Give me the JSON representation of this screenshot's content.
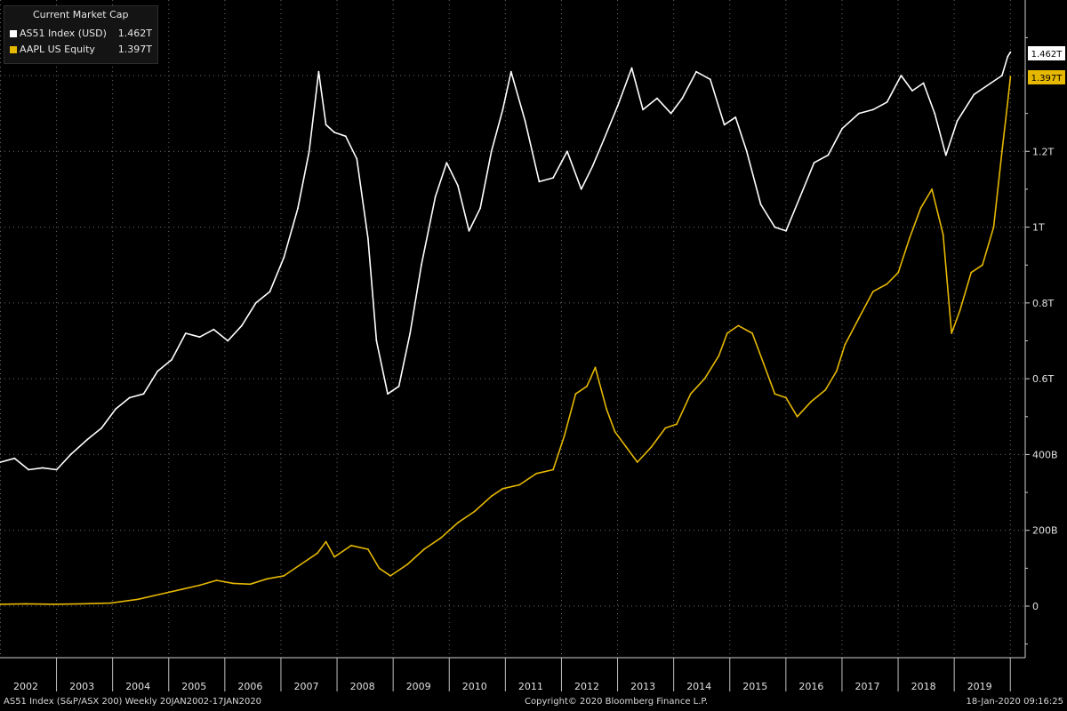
{
  "legend": {
    "title": "Current Market Cap",
    "items": [
      {
        "name": "AS51 Index (USD)",
        "value": "1.462T",
        "color": "#ffffff"
      },
      {
        "name": "AAPL US Equity",
        "value": "1.397T",
        "color": "#e6b800"
      }
    ]
  },
  "footer": {
    "left": "AS51 Index (S&P/ASX 200)  Weekly 20JAN2002-17JAN2020",
    "center": "Copyright© 2020 Bloomberg Finance L.P.",
    "right": "18-Jan-2020 09:16:25"
  },
  "colors": {
    "background": "#000000",
    "asx": "#ffffff",
    "aapl": "#e6b800",
    "grid": "#6e6e6e"
  },
  "chart_data": {
    "type": "line",
    "y_unit": "USD billions",
    "ylim": [
      -120,
      1600
    ],
    "y_ticks": [
      {
        "value": 0,
        "label": "0"
      },
      {
        "value": 200,
        "label": "200B"
      },
      {
        "value": 400,
        "label": "400B"
      },
      {
        "value": 600,
        "label": "0.6T"
      },
      {
        "value": 800,
        "label": "0.8T"
      },
      {
        "value": 1000,
        "label": "1T"
      },
      {
        "value": 1200,
        "label": "1.2T"
      }
    ],
    "x_ticks": [
      "2002",
      "2003",
      "2004",
      "2005",
      "2006",
      "2007",
      "2008",
      "2009",
      "2010",
      "2011",
      "2012",
      "2013",
      "2014",
      "2015",
      "2016",
      "2017",
      "2018",
      "2019"
    ],
    "xlim": [
      2002.05,
      2020.05
    ],
    "last_value_labels": [
      {
        "series": "AS51 Index (USD)",
        "label": "1.462T"
      },
      {
        "series": "AAPL US Equity",
        "label": "1.397T"
      }
    ],
    "series": [
      {
        "name": "AS51 Index (USD)",
        "color": "#ffffff",
        "points": [
          [
            2002.05,
            380
          ],
          [
            2002.3,
            390
          ],
          [
            2002.55,
            360
          ],
          [
            2002.8,
            365
          ],
          [
            2003.05,
            360
          ],
          [
            2003.3,
            400
          ],
          [
            2003.6,
            440
          ],
          [
            2003.85,
            470
          ],
          [
            2004.1,
            520
          ],
          [
            2004.35,
            550
          ],
          [
            2004.6,
            560
          ],
          [
            2004.85,
            620
          ],
          [
            2005.1,
            650
          ],
          [
            2005.35,
            720
          ],
          [
            2005.6,
            710
          ],
          [
            2005.85,
            730
          ],
          [
            2006.1,
            700
          ],
          [
            2006.35,
            740
          ],
          [
            2006.6,
            800
          ],
          [
            2006.85,
            830
          ],
          [
            2007.1,
            920
          ],
          [
            2007.35,
            1050
          ],
          [
            2007.55,
            1200
          ],
          [
            2007.72,
            1410
          ],
          [
            2007.85,
            1270
          ],
          [
            2008.0,
            1250
          ],
          [
            2008.2,
            1240
          ],
          [
            2008.4,
            1180
          ],
          [
            2008.6,
            970
          ],
          [
            2008.75,
            700
          ],
          [
            2008.95,
            560
          ],
          [
            2009.15,
            580
          ],
          [
            2009.35,
            720
          ],
          [
            2009.55,
            900
          ],
          [
            2009.8,
            1080
          ],
          [
            2010.0,
            1170
          ],
          [
            2010.2,
            1110
          ],
          [
            2010.4,
            990
          ],
          [
            2010.6,
            1050
          ],
          [
            2010.8,
            1200
          ],
          [
            2011.0,
            1310
          ],
          [
            2011.15,
            1410
          ],
          [
            2011.4,
            1280
          ],
          [
            2011.65,
            1120
          ],
          [
            2011.9,
            1130
          ],
          [
            2012.15,
            1200
          ],
          [
            2012.4,
            1100
          ],
          [
            2012.6,
            1160
          ],
          [
            2012.8,
            1230
          ],
          [
            2013.05,
            1320
          ],
          [
            2013.3,
            1420
          ],
          [
            2013.5,
            1310
          ],
          [
            2013.75,
            1340
          ],
          [
            2014.0,
            1300
          ],
          [
            2014.2,
            1340
          ],
          [
            2014.45,
            1410
          ],
          [
            2014.7,
            1390
          ],
          [
            2014.95,
            1270
          ],
          [
            2015.15,
            1290
          ],
          [
            2015.35,
            1200
          ],
          [
            2015.6,
            1060
          ],
          [
            2015.85,
            1000
          ],
          [
            2016.05,
            990
          ],
          [
            2016.3,
            1080
          ],
          [
            2016.55,
            1170
          ],
          [
            2016.8,
            1190
          ],
          [
            2017.05,
            1260
          ],
          [
            2017.35,
            1300
          ],
          [
            2017.6,
            1310
          ],
          [
            2017.85,
            1330
          ],
          [
            2018.1,
            1400
          ],
          [
            2018.3,
            1360
          ],
          [
            2018.5,
            1380
          ],
          [
            2018.7,
            1300
          ],
          [
            2018.9,
            1190
          ],
          [
            2019.1,
            1280
          ],
          [
            2019.4,
            1350
          ],
          [
            2019.7,
            1380
          ],
          [
            2019.9,
            1400
          ],
          [
            2020.0,
            1450
          ],
          [
            2020.05,
            1462
          ]
        ]
      },
      {
        "name": "AAPL US Equity",
        "color": "#e6b800",
        "points": [
          [
            2002.05,
            5
          ],
          [
            2002.5,
            6
          ],
          [
            2003.0,
            5
          ],
          [
            2003.5,
            6
          ],
          [
            2004.0,
            8
          ],
          [
            2004.5,
            18
          ],
          [
            2005.0,
            35
          ],
          [
            2005.3,
            45
          ],
          [
            2005.6,
            55
          ],
          [
            2005.9,
            68
          ],
          [
            2006.2,
            60
          ],
          [
            2006.5,
            58
          ],
          [
            2006.8,
            72
          ],
          [
            2007.1,
            80
          ],
          [
            2007.4,
            110
          ],
          [
            2007.7,
            140
          ],
          [
            2007.85,
            170
          ],
          [
            2008.0,
            130
          ],
          [
            2008.3,
            160
          ],
          [
            2008.6,
            150
          ],
          [
            2008.8,
            100
          ],
          [
            2009.0,
            80
          ],
          [
            2009.3,
            110
          ],
          [
            2009.6,
            150
          ],
          [
            2009.9,
            180
          ],
          [
            2010.2,
            220
          ],
          [
            2010.5,
            250
          ],
          [
            2010.8,
            290
          ],
          [
            2011.0,
            310
          ],
          [
            2011.3,
            320
          ],
          [
            2011.6,
            350
          ],
          [
            2011.9,
            360
          ],
          [
            2012.1,
            450
          ],
          [
            2012.3,
            560
          ],
          [
            2012.5,
            580
          ],
          [
            2012.65,
            630
          ],
          [
            2012.85,
            520
          ],
          [
            2013.0,
            460
          ],
          [
            2013.2,
            420
          ],
          [
            2013.4,
            380
          ],
          [
            2013.65,
            420
          ],
          [
            2013.9,
            470
          ],
          [
            2014.1,
            480
          ],
          [
            2014.35,
            560
          ],
          [
            2014.6,
            600
          ],
          [
            2014.85,
            660
          ],
          [
            2015.0,
            720
          ],
          [
            2015.2,
            740
          ],
          [
            2015.45,
            720
          ],
          [
            2015.65,
            640
          ],
          [
            2015.85,
            560
          ],
          [
            2016.05,
            550
          ],
          [
            2016.25,
            500
          ],
          [
            2016.5,
            540
          ],
          [
            2016.75,
            570
          ],
          [
            2016.95,
            620
          ],
          [
            2017.1,
            690
          ],
          [
            2017.35,
            760
          ],
          [
            2017.6,
            830
          ],
          [
            2017.85,
            850
          ],
          [
            2018.05,
            880
          ],
          [
            2018.25,
            970
          ],
          [
            2018.45,
            1050
          ],
          [
            2018.65,
            1100
          ],
          [
            2018.85,
            980
          ],
          [
            2019.0,
            720
          ],
          [
            2019.15,
            780
          ],
          [
            2019.35,
            880
          ],
          [
            2019.55,
            900
          ],
          [
            2019.75,
            1000
          ],
          [
            2019.9,
            1200
          ],
          [
            2020.0,
            1330
          ],
          [
            2020.05,
            1397
          ]
        ]
      }
    ]
  }
}
